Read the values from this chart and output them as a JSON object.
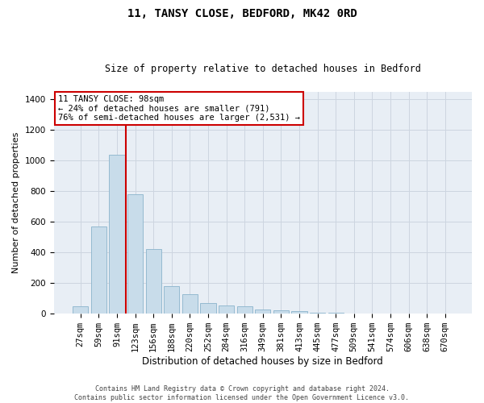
{
  "title": "11, TANSY CLOSE, BEDFORD, MK42 0RD",
  "subtitle": "Size of property relative to detached houses in Bedford",
  "xlabel": "Distribution of detached houses by size in Bedford",
  "ylabel": "Number of detached properties",
  "footer_line1": "Contains HM Land Registry data © Crown copyright and database right 2024.",
  "footer_line2": "Contains public sector information licensed under the Open Government Licence v3.0.",
  "annotation_line1": "11 TANSY CLOSE: 98sqm",
  "annotation_line2": "← 24% of detached houses are smaller (791)",
  "annotation_line3": "76% of semi-detached houses are larger (2,531) →",
  "bar_labels": [
    "27sqm",
    "59sqm",
    "91sqm",
    "123sqm",
    "156sqm",
    "188sqm",
    "220sqm",
    "252sqm",
    "284sqm",
    "316sqm",
    "349sqm",
    "381sqm",
    "413sqm",
    "445sqm",
    "477sqm",
    "509sqm",
    "541sqm",
    "574sqm",
    "606sqm",
    "638sqm",
    "670sqm"
  ],
  "bar_values": [
    50,
    570,
    1040,
    780,
    425,
    180,
    125,
    70,
    55,
    50,
    30,
    22,
    15,
    8,
    4,
    0,
    0,
    0,
    0,
    0,
    0
  ],
  "bar_color": "#c8dcea",
  "bar_edgecolor": "#8ab4cc",
  "grid_color": "#cdd5e0",
  "bg_color": "#e8eef5",
  "vline_color": "#cc0000",
  "vline_xidx": 2.5,
  "ylim_max": 1450,
  "yticks": [
    0,
    200,
    400,
    600,
    800,
    1000,
    1200,
    1400
  ],
  "title_fontsize": 10,
  "subtitle_fontsize": 8.5,
  "ylabel_fontsize": 8,
  "xlabel_fontsize": 8.5,
  "tick_fontsize": 7.5,
  "annot_fontsize": 7.5,
  "footer_fontsize": 6
}
